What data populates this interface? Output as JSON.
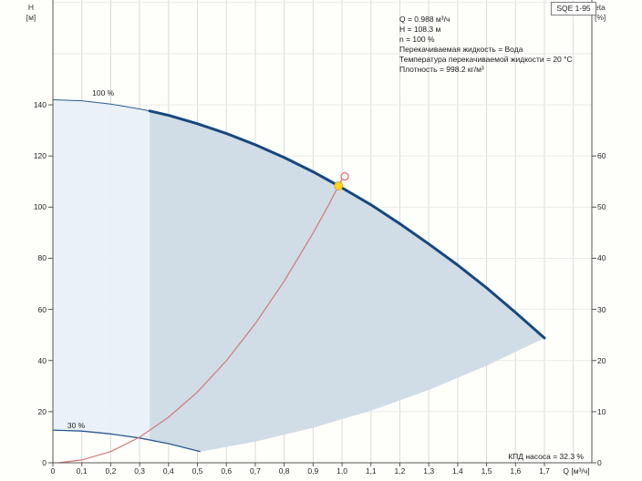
{
  "info_panel": {
    "lines": [
      "Q = 0.988 м³/ч",
      "H = 108.3 м",
      "n = 100 %",
      "Перекачиваемая жидкость = Вода",
      "Температура перекачиваемой жидкости = 20 °C",
      "Плотность = 998.2 кг/м³"
    ]
  },
  "chart_data": {
    "type": "line",
    "title": "SQE 1-95",
    "x_axis": {
      "label": "Q [м³/ч]",
      "tick_labels": [
        "0",
        "0,1",
        "0,2",
        "0,3",
        "0,4",
        "0,5",
        "0,6",
        "0,7",
        "0,8",
        "0,9",
        "1,0",
        "1,1",
        "1,2",
        "1,3",
        "1,4",
        "1,5",
        "1,6",
        "1,7"
      ],
      "tick_values": [
        0,
        0.1,
        0.2,
        0.3,
        0.4,
        0.5,
        0.6,
        0.7,
        0.8,
        0.9,
        1.0,
        1.1,
        1.2,
        1.3,
        1.4,
        1.5,
        1.6,
        1.7
      ],
      "range": [
        0,
        1.864
      ],
      "grid_step": 0.1,
      "grid_max": 1.8
    },
    "y_left_axis": {
      "symbol": "H",
      "unit": "[м]",
      "tick_values": [
        0,
        20,
        40,
        60,
        80,
        100,
        120,
        140
      ],
      "range": [
        0,
        181
      ],
      "grid_step": 20
    },
    "y_right_axis": {
      "symbol": "eta",
      "unit": "[%]",
      "tick_values": [
        0,
        10,
        20,
        30,
        40,
        50,
        60
      ],
      "range": [
        0,
        90.5
      ]
    },
    "colors": {
      "pump_curve": "#17477e",
      "pump_curve_thin": "#2a5a8e",
      "system_curve": "#cf7a7a",
      "envelope_light": "#e9f0f8",
      "envelope_dark": "#cfdae5",
      "duty_point_fill": "#ffd21e",
      "duty_point_stroke": "#d4a017",
      "requested_point_stroke": "#e57373",
      "grid_vertical": "#dadada",
      "grid_horizontal": "#e9e9e9",
      "axis": "#555555"
    },
    "series": {
      "pump_curve_100": {
        "label": "100 %",
        "label_pos": [
          0.136,
          143.6
        ],
        "operating_range_start_q": 0.335,
        "points": [
          [
            0,
            142
          ],
          [
            0.1,
            141.6
          ],
          [
            0.2,
            140.3
          ],
          [
            0.3,
            138.4
          ],
          [
            0.335,
            137.6
          ],
          [
            0.4,
            135.9
          ],
          [
            0.5,
            132.6
          ],
          [
            0.6,
            128.8
          ],
          [
            0.7,
            124.4
          ],
          [
            0.8,
            119.4
          ],
          [
            0.9,
            113.8
          ],
          [
            0.988,
            108.3
          ],
          [
            1.1,
            100.9
          ],
          [
            1.2,
            93.5
          ],
          [
            1.3,
            85.6
          ],
          [
            1.4,
            77.3
          ],
          [
            1.5,
            68.4
          ],
          [
            1.6,
            58.8
          ],
          [
            1.7,
            48.8
          ]
        ]
      },
      "pump_curve_30": {
        "label": "30 %",
        "label_pos": [
          0.05,
          13.4
        ],
        "points": [
          [
            0,
            12.8
          ],
          [
            0.1,
            12.4
          ],
          [
            0.2,
            11.3
          ],
          [
            0.3,
            9.7
          ],
          [
            0.4,
            7.5
          ],
          [
            0.51,
            4.4
          ]
        ]
      },
      "envelope_lower_boundary": {
        "points": [
          [
            0.51,
            4.4
          ],
          [
            0.7,
            8.3
          ],
          [
            0.9,
            13.7
          ],
          [
            1.1,
            20.4
          ],
          [
            1.3,
            28.5
          ],
          [
            1.5,
            38.0
          ],
          [
            1.7,
            48.8
          ]
        ]
      },
      "system_curve": {
        "points": [
          [
            0.02,
            0
          ],
          [
            0.1,
            1.1
          ],
          [
            0.2,
            4.4
          ],
          [
            0.3,
            10.0
          ],
          [
            0.4,
            17.8
          ],
          [
            0.5,
            27.7
          ],
          [
            0.6,
            39.9
          ],
          [
            0.7,
            54.4
          ],
          [
            0.8,
            71.0
          ],
          [
            0.9,
            89.9
          ],
          [
            0.95,
            100.1
          ],
          [
            1.0,
            110.9
          ]
        ]
      }
    },
    "duty_point": {
      "q": 0.988,
      "h": 108.3
    },
    "requested_point": {
      "q": 1.0,
      "h": 112.0
    },
    "efficiency_note": "КПД насоса = 32.3 %"
  }
}
